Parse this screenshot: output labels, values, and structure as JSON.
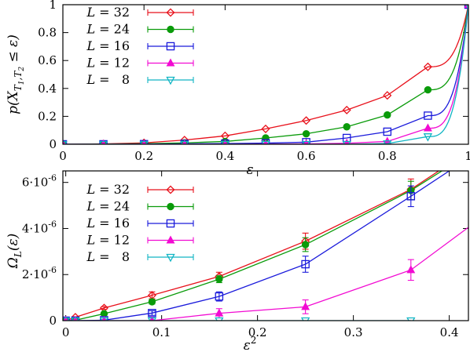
{
  "chart_data": [
    {
      "type": "line",
      "xlabel": "ε",
      "ylabel": "p(X_{T1,T2} ≤ ε)",
      "xlim": [
        0,
        1
      ],
      "ylim": [
        0,
        1
      ],
      "xticks": [
        0,
        0.2,
        0.4,
        0.6,
        0.8,
        1
      ],
      "xtick_labels": [
        "0",
        "0.2",
        "0.4",
        "0.6",
        "0.8",
        "1"
      ],
      "yticks": [
        0,
        0.2,
        0.4,
        0.6,
        0.8,
        1
      ],
      "ytick_labels": [
        "0",
        "0.2",
        "0.4",
        "0.6",
        "0.8",
        "1"
      ],
      "legend_position": "top-left",
      "series": [
        {
          "name": "L = 32",
          "color": "#e8111b",
          "marker": "diamond-open",
          "points": [
            [
              0,
              0
            ],
            [
              0.1,
              0.003
            ],
            [
              0.2,
              0.01
            ],
            [
              0.3,
              0.03
            ],
            [
              0.4,
              0.06
            ],
            [
              0.5,
              0.11
            ],
            [
              0.6,
              0.17
            ],
            [
              0.7,
              0.245
            ],
            [
              0.8,
              0.35
            ],
            [
              0.9,
              0.555
            ],
            [
              1.0,
              1.0
            ]
          ]
        },
        {
          "name": "L = 24",
          "color": "#0a9b0a",
          "marker": "circle-filled",
          "points": [
            [
              0,
              0
            ],
            [
              0.1,
              0.001
            ],
            [
              0.2,
              0.004
            ],
            [
              0.3,
              0.01
            ],
            [
              0.4,
              0.02
            ],
            [
              0.5,
              0.045
            ],
            [
              0.6,
              0.075
            ],
            [
              0.7,
              0.125
            ],
            [
              0.8,
              0.21
            ],
            [
              0.9,
              0.39
            ],
            [
              1.0,
              1.0
            ]
          ]
        },
        {
          "name": "L = 16",
          "color": "#1a1adb",
          "marker": "square-open",
          "points": [
            [
              0,
              0
            ],
            [
              0.1,
              0
            ],
            [
              0.2,
              0.001
            ],
            [
              0.3,
              0.003
            ],
            [
              0.4,
              0.005
            ],
            [
              0.5,
              0.008
            ],
            [
              0.6,
              0.015
            ],
            [
              0.7,
              0.045
            ],
            [
              0.8,
              0.09
            ],
            [
              0.9,
              0.205
            ],
            [
              1.0,
              1.0
            ]
          ]
        },
        {
          "name": "L = 12",
          "color": "#f20ad2",
          "marker": "triangle-up-filled",
          "points": [
            [
              0,
              0
            ],
            [
              0.1,
              0
            ],
            [
              0.2,
              0
            ],
            [
              0.3,
              0
            ],
            [
              0.4,
              0
            ],
            [
              0.5,
              0.001
            ],
            [
              0.6,
              0.003
            ],
            [
              0.7,
              0.007
            ],
            [
              0.8,
              0.02
            ],
            [
              0.9,
              0.115
            ],
            [
              1.0,
              1.0
            ]
          ]
        },
        {
          "name": "L =   8",
          "color": "#11b5c4",
          "marker": "triangle-down-open",
          "points": [
            [
              0,
              0
            ],
            [
              0.1,
              0
            ],
            [
              0.2,
              0
            ],
            [
              0.3,
              0
            ],
            [
              0.4,
              0
            ],
            [
              0.5,
              0
            ],
            [
              0.6,
              0
            ],
            [
              0.7,
              0
            ],
            [
              0.8,
              0.005
            ],
            [
              0.9,
              0.055
            ],
            [
              1.0,
              1.0
            ]
          ]
        }
      ]
    },
    {
      "type": "line",
      "xlabel": "ε²",
      "ylabel": "Ω_L(ε)",
      "xlim": [
        -0.003,
        0.42
      ],
      "ylim": [
        0,
        6.5e-06
      ],
      "xticks": [
        0,
        0.1,
        0.2,
        0.3,
        0.4
      ],
      "xtick_labels": [
        "0",
        "0.1",
        "0.2",
        "0.3",
        "0.4"
      ],
      "yticks": [
        0,
        2e-06,
        4e-06,
        6e-06
      ],
      "ytick_labels": [
        "0",
        "2·10⁻⁶",
        "4·10⁻⁶",
        "6·10⁻⁶"
      ],
      "legend_position": "top-left",
      "series": [
        {
          "name": "L = 32",
          "color": "#e8111b",
          "marker": "diamond-open",
          "points": [
            [
              0,
              0
            ],
            [
              0.01,
              1.5e-07
            ],
            [
              0.04,
              5.5e-07
            ],
            [
              0.09,
              1.1e-06
            ],
            [
              0.16,
              1.92e-06
            ],
            [
              0.25,
              3.45e-06
            ],
            [
              0.36,
              5.7e-06
            ],
            [
              0.4,
              6.8e-06
            ]
          ],
          "errors": [
            0,
            2e-08,
            6e-08,
            1.5e-07,
            1.8e-07,
            3.5e-07,
            4.5e-07,
            0
          ]
        },
        {
          "name": "L = 24",
          "color": "#0a9b0a",
          "marker": "circle-filled",
          "points": [
            [
              0,
              0
            ],
            [
              0.01,
              2e-08
            ],
            [
              0.04,
              3e-07
            ],
            [
              0.09,
              8.2e-07
            ],
            [
              0.16,
              1.8e-06
            ],
            [
              0.25,
              3.3e-06
            ],
            [
              0.36,
              5.65e-06
            ],
            [
              0.4,
              6.7e-06
            ]
          ],
          "errors": [
            0,
            2e-08,
            5e-08,
            1e-07,
            1.5e-07,
            3e-07,
            4e-07,
            0
          ]
        },
        {
          "name": "L = 16",
          "color": "#1a1adb",
          "marker": "square-open",
          "points": [
            [
              0,
              0
            ],
            [
              0.01,
              0
            ],
            [
              0.04,
              2e-08
            ],
            [
              0.09,
              3.3e-07
            ],
            [
              0.16,
              1.05e-06
            ],
            [
              0.25,
              2.45e-06
            ],
            [
              0.36,
              5.4e-06
            ],
            [
              0.4,
              6.5e-06
            ]
          ],
          "errors": [
            0,
            0,
            2e-08,
            1e-07,
            2e-07,
            3.5e-07,
            4.5e-07,
            0
          ]
        },
        {
          "name": "L = 12",
          "color": "#f20ad2",
          "marker": "triangle-up-filled",
          "points": [
            [
              0,
              0
            ],
            [
              0.01,
              0
            ],
            [
              0.04,
              0
            ],
            [
              0.09,
              0
            ],
            [
              0.16,
              3.2e-07
            ],
            [
              0.25,
              6e-07
            ],
            [
              0.36,
              2.2e-06
            ],
            [
              0.42,
              4.05e-06
            ]
          ],
          "errors": [
            0,
            0,
            0,
            0,
            2e-07,
            3e-07,
            4.5e-07,
            0
          ]
        },
        {
          "name": "L =   8",
          "color": "#11b5c4",
          "marker": "triangle-down-open",
          "points": [
            [
              0,
              0
            ],
            [
              0.01,
              0
            ],
            [
              0.04,
              0
            ],
            [
              0.09,
              0
            ],
            [
              0.16,
              0
            ],
            [
              0.25,
              0
            ],
            [
              0.36,
              0
            ]
          ],
          "errors": [
            0,
            0,
            0,
            0,
            0,
            0,
            0
          ]
        }
      ]
    }
  ]
}
